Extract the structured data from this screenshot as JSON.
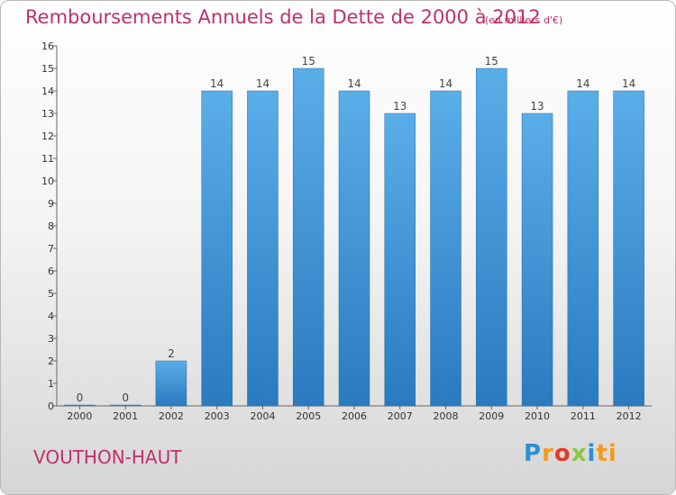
{
  "header": {
    "title": "Remboursements Annuels de la Dette de 2000 à 2012",
    "subtitle": "(en milliers d'€)"
  },
  "footer": {
    "commune": "VOUTHON-HAUT",
    "logo_text": "Proxiti"
  },
  "colors": {
    "title": "#c0306a",
    "bar_top": "#5aaee8",
    "bar_bottom": "#2a7ac0"
  },
  "chart_data": {
    "type": "bar",
    "title": "Remboursements Annuels de la Dette de 2000 à 2012",
    "subtitle": "(en milliers d'€)",
    "categories": [
      "2000",
      "2001",
      "2002",
      "2003",
      "2004",
      "2005",
      "2006",
      "2007",
      "2008",
      "2009",
      "2010",
      "2011",
      "2012"
    ],
    "values": [
      0,
      0,
      2,
      14,
      14,
      15,
      14,
      13,
      14,
      15,
      13,
      14,
      14
    ],
    "value_labels": [
      "0",
      "0",
      "2",
      "14",
      "14",
      "15",
      "14",
      "13",
      "14",
      "15",
      "13",
      "14",
      "14"
    ],
    "yticks": [
      "0",
      "1",
      "2",
      "3",
      "4",
      "5",
      "6",
      "7",
      "8",
      "9",
      "10",
      "11",
      "12",
      "13",
      "14",
      "15",
      "16"
    ],
    "ylim": [
      0,
      16
    ],
    "grid": false,
    "legend": "none"
  }
}
